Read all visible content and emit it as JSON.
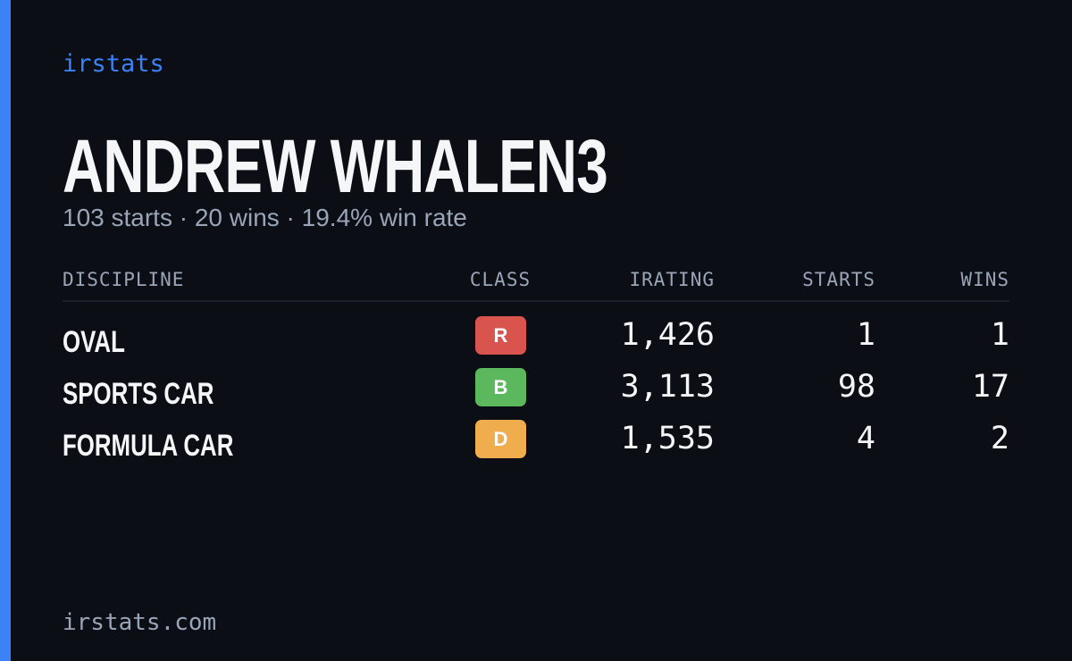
{
  "brand": "irstats",
  "profile": {
    "name": "ANDREW WHALEN3",
    "summary": "103 starts · 20 wins · 19.4% win rate"
  },
  "table": {
    "headers": [
      "DISCIPLINE",
      "CLASS",
      "IRATING",
      "STARTS",
      "WINS"
    ],
    "rows": [
      {
        "discipline": "OVAL",
        "class": "R",
        "class_color": "#d9534f",
        "irating": "1,426",
        "starts": 1,
        "wins": 1
      },
      {
        "discipline": "SPORTS CAR",
        "class": "B",
        "class_color": "#5cb85c",
        "irating": "3,113",
        "starts": 98,
        "wins": 17
      },
      {
        "discipline": "FORMULA CAR",
        "class": "D",
        "class_color": "#f0ad4e",
        "irating": "1,535",
        "starts": 4,
        "wins": 2
      }
    ]
  },
  "footer": "irstats.com"
}
